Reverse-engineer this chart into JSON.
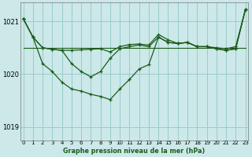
{
  "title": "Graphe pression niveau de la mer (hPa)",
  "bg_color": "#cce8e8",
  "line_color": "#1a5c1a",
  "grid_color": "#99cccc",
  "ylim": [
    1018.75,
    1021.35
  ],
  "xlim": [
    -0.3,
    23.3
  ],
  "yticks": [
    1019,
    1020,
    1021
  ],
  "xticks": [
    0,
    1,
    2,
    3,
    4,
    5,
    6,
    7,
    8,
    9,
    10,
    11,
    12,
    13,
    14,
    15,
    16,
    17,
    18,
    19,
    20,
    21,
    22,
    23
  ],
  "series_main": [
    1021.05,
    1020.7,
    1020.5,
    1020.47,
    1020.45,
    1020.45,
    1020.46,
    1020.47,
    1020.48,
    1020.42,
    1020.52,
    1020.56,
    1020.57,
    1020.55,
    1020.75,
    1020.65,
    1020.58,
    1020.6,
    1020.52,
    1020.52,
    1020.5,
    1020.48,
    1020.52,
    1021.22
  ],
  "series_mid": [
    1021.05,
    1020.7,
    1020.5,
    1020.47,
    1020.45,
    1020.2,
    1020.05,
    1019.95,
    1020.05,
    1020.3,
    1020.48,
    1020.52,
    1020.55,
    1020.52,
    1020.7,
    1020.6,
    1020.58,
    1020.6,
    1020.52,
    1020.52,
    1020.48,
    1020.45,
    1020.48,
    1021.22
  ],
  "series_low": [
    1021.05,
    1020.7,
    1020.2,
    1020.05,
    1019.85,
    1019.72,
    1019.68,
    1019.62,
    1019.58,
    1019.52,
    1019.72,
    1019.9,
    1020.1,
    1020.18,
    1020.7,
    1020.6,
    1020.58,
    1020.6,
    1020.52,
    1020.52,
    1020.48,
    1020.45,
    1020.48,
    1021.22
  ],
  "series_flat": [
    1020.5,
    1020.5,
    1020.5,
    1020.5,
    1020.5,
    1020.5,
    1020.5,
    1020.5,
    1020.5,
    1020.5,
    1020.5,
    1020.5,
    1020.5,
    1020.5,
    1020.5,
    1020.5,
    1020.5,
    1020.5,
    1020.5,
    1020.5,
    1020.5,
    1020.5,
    1020.5,
    1020.5
  ]
}
